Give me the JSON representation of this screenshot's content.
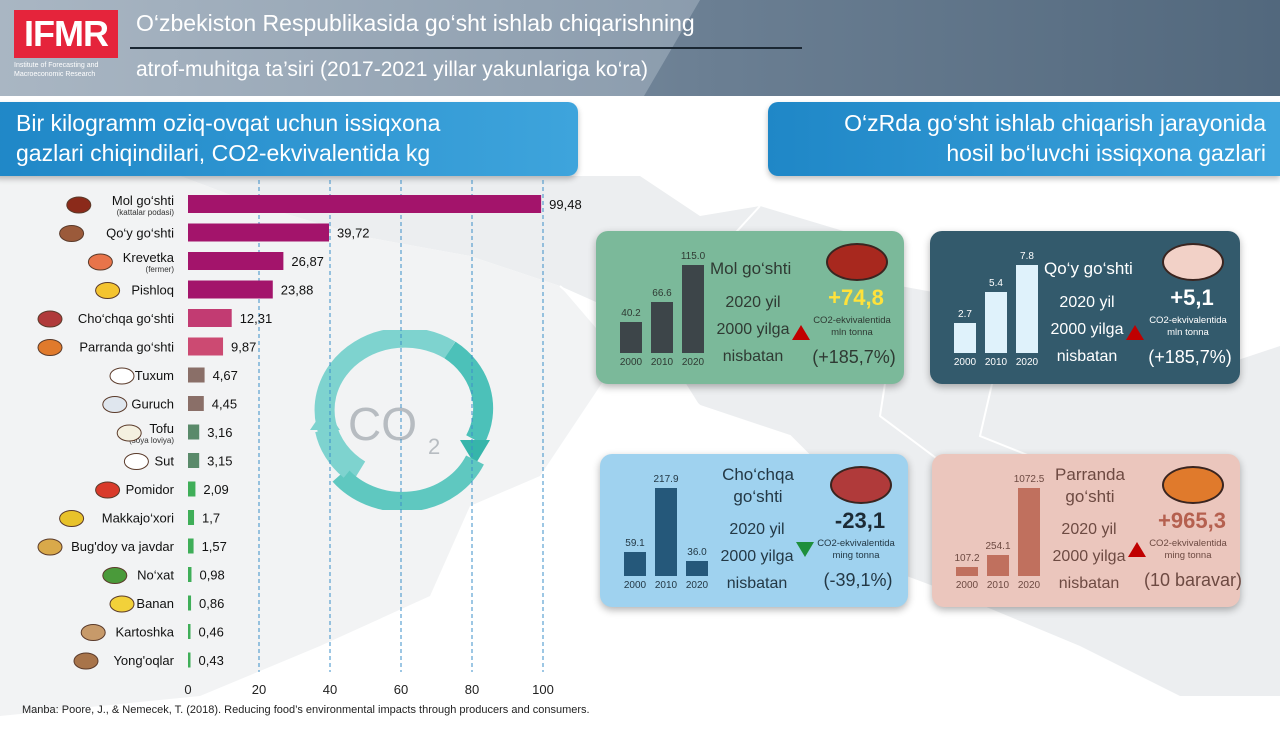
{
  "header": {
    "logo": "IFMR",
    "logo_sub": "Institute of Forecasting and Macroeconomic Research",
    "title_line1": "O‘zbekiston Respublikasida go‘sht ishlab chiqarishning",
    "title_line2": "atrof-muhitga ta’siri  (2017-2021 yillar yakunlariga ko‘ra)"
  },
  "left_banner": {
    "line1": "Bir kilogramm oziq-ovqat uchun issiqxona",
    "line2": "gazlari chiqindilari,  CO2-ekvivalentida kg"
  },
  "right_banner": {
    "line1": "O‘zRda go‘sht ishlab chiqarish jarayonida",
    "line2": "hosil bo‘luvchi issiqxona gazlari"
  },
  "co2_label": "CO",
  "co2_sub": "2",
  "source": "Manba: Poore, J., & Nemecek, T. (2018). Reducing food’s environmental impacts through producers and consumers.",
  "colors": {
    "meat": "#a3146b",
    "meat_light": "#c23b72",
    "poultry": "#cc4a72",
    "egg_rice": "#8a6f68",
    "tofu": "#5a8a6a",
    "plant": "#3fae58",
    "gridline": "#3b8fc9"
  },
  "chart_data": {
    "type": "bar",
    "orientation": "horizontal",
    "categories": [
      {
        "name": "Mol go‘shti",
        "note": "(kattalar podasi)",
        "value": 99.48,
        "label": "99,48",
        "icon": "steak-icon",
        "color": "meat"
      },
      {
        "name": "Qo‘y go‘shti",
        "note": "",
        "value": 39.72,
        "label": "39,72",
        "icon": "lamb-leg-icon",
        "color": "meat"
      },
      {
        "name": "Krevetka",
        "note": "(fermer)",
        "value": 26.87,
        "label": "26,87",
        "icon": "shrimp-icon",
        "color": "meat"
      },
      {
        "name": "Pishloq",
        "note": "",
        "value": 23.88,
        "label": "23,88",
        "icon": "cheese-icon",
        "color": "meat"
      },
      {
        "name": "Cho‘chqa go‘shti",
        "note": "",
        "value": 12.31,
        "label": "12,31",
        "icon": "ham-icon",
        "color": "meat_light"
      },
      {
        "name": "Parranda go‘shti",
        "note": "",
        "value": 9.87,
        "label": "9,87",
        "icon": "chicken-icon",
        "color": "poultry"
      },
      {
        "name": "Tuxum",
        "note": "",
        "value": 4.67,
        "label": "4,67",
        "icon": "egg-icon",
        "color": "egg_rice"
      },
      {
        "name": "Guruch",
        "note": "",
        "value": 4.45,
        "label": "4,45",
        "icon": "rice-bowl-icon",
        "color": "egg_rice"
      },
      {
        "name": "Tofu",
        "note": "(soya loviya)",
        "value": 3.16,
        "label": "3,16",
        "icon": "tofu-icon",
        "color": "tofu"
      },
      {
        "name": "Sut",
        "note": "",
        "value": 3.15,
        "label": "3,15",
        "icon": "milk-bottle-icon",
        "color": "tofu"
      },
      {
        "name": "Pomidor",
        "note": "",
        "value": 2.09,
        "label": "2,09",
        "icon": "tomato-icon",
        "color": "plant"
      },
      {
        "name": "Makkajo‘xori",
        "note": "",
        "value": 1.7,
        "label": "1,7",
        "icon": "corn-icon",
        "color": "plant"
      },
      {
        "name": "Bug'doy va javdar",
        "note": "",
        "value": 1.57,
        "label": "1,57",
        "icon": "wheat-icon",
        "color": "plant"
      },
      {
        "name": "No‘xat",
        "note": "",
        "value": 0.98,
        "label": "0,98",
        "icon": "peas-icon",
        "color": "plant"
      },
      {
        "name": "Banan",
        "note": "",
        "value": 0.86,
        "label": "0,86",
        "icon": "banana-icon",
        "color": "plant"
      },
      {
        "name": "Kartoshka",
        "note": "",
        "value": 0.46,
        "label": "0,46",
        "icon": "potato-icon",
        "color": "plant"
      },
      {
        "name": "Yong'oqlar",
        "note": "",
        "value": 0.43,
        "label": "0,43",
        "icon": "nuts-icon",
        "color": "plant"
      }
    ],
    "xlim": [
      0,
      100
    ],
    "xticks": [
      0,
      20,
      40,
      60,
      80,
      100
    ],
    "grid": "vertical dashed"
  },
  "cards": [
    {
      "title": "Mol go‘shti",
      "sub": [
        "2020 yil",
        "2000 yilga",
        "nisbatan"
      ],
      "change": "+74,8",
      "unit": [
        "CO2-ekvivalentida",
        "mln tonna"
      ],
      "pct": "(+185,7%)",
      "direction": "up",
      "icon": "steak-icon",
      "mini": {
        "years": [
          "2000",
          "2010",
          "2020"
        ],
        "values": [
          40.2,
          66.6,
          115.0
        ],
        "labels": [
          "40.2",
          "66.6",
          "115.0"
        ]
      }
    },
    {
      "title": "Qo‘y go‘shti",
      "sub": [
        "2020 yil",
        "2000 yilga",
        "nisbatan"
      ],
      "change": "+5,1",
      "unit": [
        "CO2-ekvivalentida",
        "mln tonna"
      ],
      "pct": "(+185,7%)",
      "direction": "up",
      "icon": "lamb-leg-icon",
      "mini": {
        "years": [
          "2000",
          "2010",
          "2020"
        ],
        "values": [
          2.7,
          5.4,
          7.8
        ],
        "labels": [
          "2.7",
          "5.4",
          "7.8"
        ]
      }
    },
    {
      "title_lines": [
        "Cho‘chqa",
        "go‘shti"
      ],
      "sub": [
        "2020 yil",
        "2000 yilga",
        "nisbatan"
      ],
      "change": "-23,1",
      "unit": [
        "CO2-ekvivalentida",
        "ming tonna"
      ],
      "pct": "(-39,1%)",
      "direction": "down",
      "icon": "ham-icon",
      "mini": {
        "years": [
          "2000",
          "2010",
          "2020"
        ],
        "values": [
          59.1,
          217.9,
          36.0
        ],
        "labels": [
          "59.1",
          "217.9",
          "36.0"
        ]
      }
    },
    {
      "title_lines": [
        "Parranda",
        "go‘shti"
      ],
      "sub": [
        "2020 yil",
        "2000 yilga",
        "nisbatan"
      ],
      "change": "+965,3",
      "unit": [
        "CO2-ekvivalentida",
        "ming tonna"
      ],
      "pct": "(10 baravar)",
      "direction": "up",
      "icon": "chicken-icon",
      "mini": {
        "years": [
          "2000",
          "2010",
          "2020"
        ],
        "values": [
          107.2,
          254.1,
          1072.5
        ],
        "labels": [
          "107.2",
          "254.1",
          "1072.5"
        ]
      }
    }
  ]
}
